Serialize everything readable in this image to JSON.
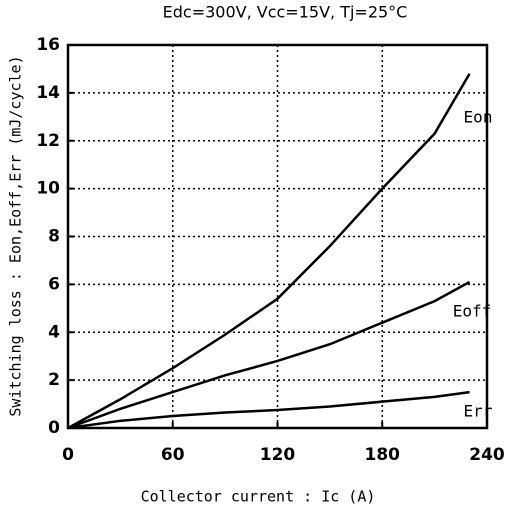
{
  "chart_data": {
    "type": "line",
    "title": "Edc=300V, Vcc=15V, Tj=25°C",
    "x_label": "Collector current : Ic  (A)",
    "y_label": "Switching loss : Eon,Eoff,Err  (mJ/cycle)",
    "x": [
      0,
      30,
      60,
      90,
      120,
      150,
      180,
      210,
      230
    ],
    "series": [
      {
        "name": "Eon",
        "color": "#000000",
        "values": [
          0,
          1.2,
          2.5,
          3.9,
          5.4,
          7.6,
          10.0,
          12.3,
          14.8
        ]
      },
      {
        "name": "Eoff",
        "color": "#000000",
        "values": [
          0,
          0.8,
          1.5,
          2.2,
          2.8,
          3.5,
          4.4,
          5.3,
          6.1
        ]
      },
      {
        "name": "Err",
        "color": "#000000",
        "values": [
          0,
          0.3,
          0.5,
          0.65,
          0.75,
          0.9,
          1.1,
          1.3,
          1.5
        ]
      }
    ],
    "xlim": [
      0,
      240
    ],
    "xticks": [
      0,
      60,
      120,
      180,
      240
    ],
    "ylim": [
      0,
      16
    ],
    "yticks": [
      0,
      2,
      4,
      6,
      8,
      10,
      12,
      14,
      16
    ],
    "grid": true
  }
}
